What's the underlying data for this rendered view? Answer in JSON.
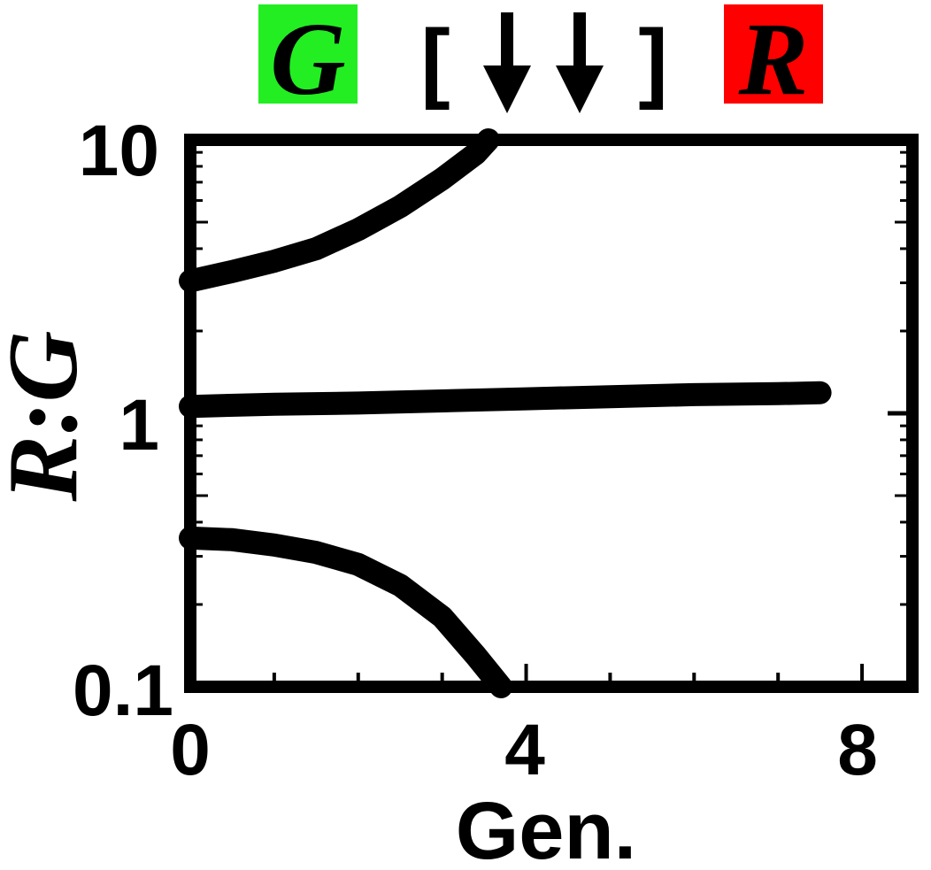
{
  "chart_data": {
    "type": "line",
    "xlabel": "Gen.",
    "ylabel": "R:G",
    "xlim": [
      0,
      8.6
    ],
    "ylim": [
      0.1,
      10
    ],
    "yscale": "log",
    "grid": false,
    "x_ticks": [
      "0",
      "4",
      "8"
    ],
    "y_ticks": [
      "0.1",
      "1",
      "10"
    ],
    "header": {
      "left_badge": {
        "text": "G",
        "color": "#22ee22"
      },
      "middle": {
        "open": "[",
        "close": "]",
        "arrow_count": 2
      },
      "right_badge": {
        "text": "R",
        "color": "#ff0000"
      }
    },
    "series": [
      {
        "x": [
          0,
          0.5,
          1.0,
          1.5,
          2.0,
          2.5,
          3.0,
          3.4,
          3.55
        ],
        "y": [
          3.05,
          3.3,
          3.6,
          4.0,
          4.7,
          5.7,
          7.2,
          8.9,
          10
        ]
      },
      {
        "x": [
          0,
          1,
          2,
          3,
          4,
          5,
          6,
          7,
          7.5
        ],
        "y": [
          1.06,
          1.08,
          1.09,
          1.11,
          1.13,
          1.15,
          1.17,
          1.18,
          1.19
        ]
      },
      {
        "x": [
          0,
          0.5,
          1.0,
          1.5,
          2.0,
          2.5,
          3.0,
          3.4,
          3.7
        ],
        "y": [
          0.35,
          0.345,
          0.33,
          0.31,
          0.28,
          0.235,
          0.18,
          0.13,
          0.1
        ]
      }
    ]
  }
}
